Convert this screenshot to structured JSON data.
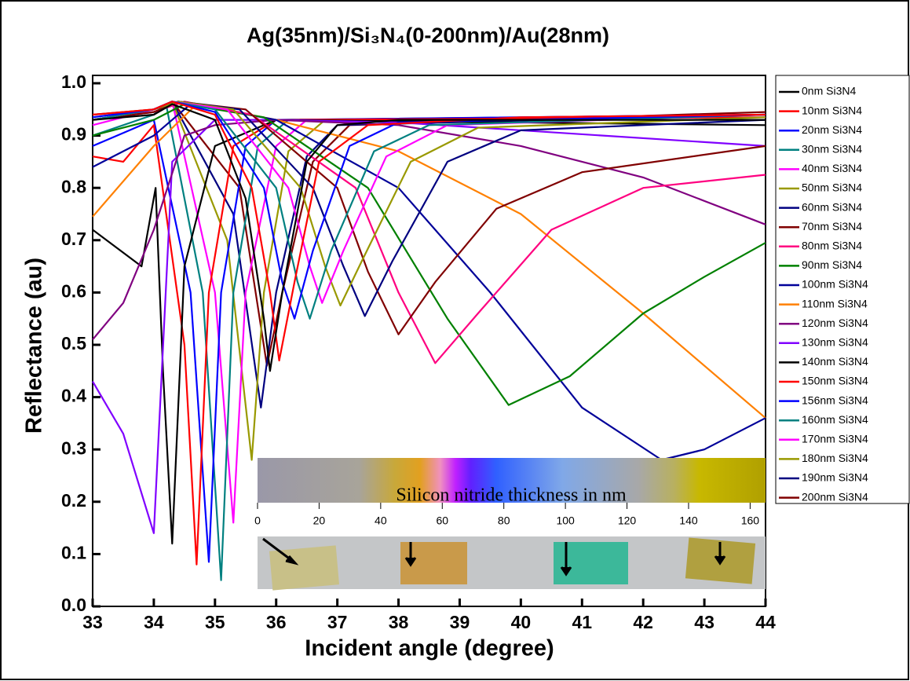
{
  "chart_data": {
    "type": "line",
    "title": "Ag(35nm)/Si₃N₄(0-200nm)/Au(28nm)",
    "x_label": "Incident angle (degree)",
    "y_label": "Reflectance (au)",
    "xlim": [
      33,
      44
    ],
    "ylim": [
      0,
      1.015
    ],
    "xticks": [
      33,
      34,
      35,
      36,
      37,
      38,
      39,
      40,
      41,
      42,
      43,
      44
    ],
    "yticks": [
      {
        "value": 0,
        "label": "0.0"
      },
      0.1,
      0.2,
      0.3,
      0.4,
      0.5,
      0.6,
      0.7,
      0.8,
      0.9,
      {
        "value": 1,
        "label": "1.0"
      }
    ],
    "series": [
      {
        "name": "0nm Si3N4",
        "color": "#000000",
        "x": [
          33,
          34,
          34.3,
          35,
          35.5,
          35.8,
          35.9,
          36.1,
          36.5,
          37,
          38,
          40,
          44
        ],
        "values": [
          0.93,
          0.94,
          0.96,
          0.93,
          0.78,
          0.55,
          0.45,
          0.6,
          0.85,
          0.92,
          0.93,
          0.93,
          0.93
        ]
      },
      {
        "name": "10nm Si3N4",
        "color": "#ff0000",
        "x": [
          33,
          34,
          34.3,
          35,
          35.6,
          35.9,
          36.05,
          36.3,
          36.7,
          37.5,
          40,
          44
        ],
        "values": [
          0.94,
          0.95,
          0.965,
          0.94,
          0.8,
          0.6,
          0.47,
          0.62,
          0.85,
          0.92,
          0.935,
          0.94
        ]
      },
      {
        "name": "20nm Si3N4",
        "color": "#0000ff",
        "x": [
          33,
          34,
          34.3,
          35,
          35.8,
          36.1,
          36.3,
          36.6,
          37.2,
          38,
          44
        ],
        "values": [
          0.935,
          0.95,
          0.965,
          0.945,
          0.8,
          0.62,
          0.55,
          0.68,
          0.88,
          0.925,
          0.94
        ]
      },
      {
        "name": "30nm Si3N4",
        "color": "#008080",
        "x": [
          33,
          34,
          34.3,
          35,
          36,
          36.35,
          36.55,
          36.9,
          37.6,
          38.5,
          44
        ],
        "values": [
          0.93,
          0.95,
          0.965,
          0.95,
          0.8,
          0.62,
          0.55,
          0.68,
          0.87,
          0.92,
          0.94
        ]
      },
      {
        "name": "40nm Si3N4",
        "color": "#ff00ff",
        "x": [
          33,
          34,
          34.3,
          35.2,
          36.2,
          36.55,
          36.75,
          37.1,
          37.8,
          38.8,
          44
        ],
        "values": [
          0.93,
          0.95,
          0.965,
          0.95,
          0.8,
          0.65,
          0.58,
          0.68,
          0.86,
          0.92,
          0.94
        ]
      },
      {
        "name": "50nm Si3N4",
        "color": "#999900",
        "x": [
          33,
          34,
          34.4,
          35.3,
          36.4,
          36.8,
          37.05,
          37.4,
          38.2,
          39.3,
          44
        ],
        "values": [
          0.93,
          0.95,
          0.965,
          0.95,
          0.8,
          0.65,
          0.575,
          0.66,
          0.85,
          0.915,
          0.935
        ]
      },
      {
        "name": "60nm Si3N4",
        "color": "#000080",
        "x": [
          33,
          34,
          34.4,
          35.4,
          36.6,
          37.1,
          37.45,
          37.9,
          38.8,
          40,
          44
        ],
        "values": [
          0.93,
          0.95,
          0.965,
          0.95,
          0.8,
          0.65,
          0.555,
          0.66,
          0.85,
          0.91,
          0.93
        ]
      },
      {
        "name": "70nm Si3N4",
        "color": "#800000",
        "x": [
          33,
          34,
          34.4,
          35.5,
          37,
          37.5,
          38,
          38.6,
          39.6,
          41,
          44
        ],
        "values": [
          0.93,
          0.945,
          0.965,
          0.95,
          0.8,
          0.64,
          0.52,
          0.62,
          0.76,
          0.83,
          0.88
        ]
      },
      {
        "name": "80nm Si3N4",
        "color": "#ff0080",
        "x": [
          33,
          34,
          34.5,
          35.6,
          37.3,
          38,
          38.6,
          39.3,
          40.5,
          42,
          44
        ],
        "values": [
          0.93,
          0.945,
          0.965,
          0.94,
          0.8,
          0.6,
          0.465,
          0.56,
          0.72,
          0.8,
          0.825
        ]
      },
      {
        "name": "90nm Si3N4",
        "color": "#008000",
        "x": [
          33,
          34,
          34.5,
          35.8,
          37.5,
          38.8,
          39.8,
          40.8,
          42,
          43,
          44
        ],
        "values": [
          0.9,
          0.93,
          0.96,
          0.935,
          0.8,
          0.55,
          0.385,
          0.44,
          0.56,
          0.63,
          0.695
        ]
      },
      {
        "name": "100nm Si3N4",
        "color": "#000099",
        "x": [
          33,
          34,
          34.6,
          36,
          38,
          39.5,
          41,
          42.3,
          43,
          44
        ],
        "values": [
          0.84,
          0.9,
          0.96,
          0.93,
          0.8,
          0.6,
          0.38,
          0.28,
          0.3,
          0.36
        ]
      },
      {
        "name": "110nm Si3N4",
        "color": "#ff8000",
        "x": [
          33,
          34,
          34.7,
          36,
          38,
          40,
          42,
          44
        ],
        "values": [
          0.745,
          0.88,
          0.96,
          0.93,
          0.87,
          0.75,
          0.56,
          0.36
        ]
      },
      {
        "name": "120nm Si3N4",
        "color": "#800080",
        "x": [
          33,
          33.5,
          34,
          34.5,
          35,
          36,
          38,
          40,
          42,
          44
        ],
        "values": [
          0.51,
          0.58,
          0.72,
          0.9,
          0.92,
          0.93,
          0.92,
          0.88,
          0.82,
          0.73
        ]
      },
      {
        "name": "130nm Si3N4",
        "color": "#8000ff",
        "x": [
          33,
          33.5,
          34,
          34.3,
          35,
          36,
          38,
          44
        ],
        "values": [
          0.43,
          0.33,
          0.14,
          0.85,
          0.93,
          0.93,
          0.925,
          0.88
        ]
      },
      {
        "name": "140nm Si3N4",
        "color": "#000000",
        "x": [
          33,
          33.8,
          34.03,
          34.15,
          34.3,
          34.5,
          35,
          36,
          44
        ],
        "values": [
          0.72,
          0.65,
          0.8,
          0.45,
          0.12,
          0.65,
          0.88,
          0.93,
          0.92
        ]
      },
      {
        "name": "150nm Si3N4",
        "color": "#ff0000",
        "x": [
          33,
          33.5,
          34,
          34.5,
          34.7,
          34.9,
          35.3,
          36,
          44
        ],
        "values": [
          0.86,
          0.85,
          0.92,
          0.5,
          0.08,
          0.6,
          0.88,
          0.93,
          0.935
        ]
      },
      {
        "name": "156nm Si3N4",
        "color": "#0000ff",
        "x": [
          33,
          34,
          34.6,
          34.9,
          35.1,
          35.5,
          36,
          44
        ],
        "values": [
          0.88,
          0.93,
          0.6,
          0.085,
          0.6,
          0.88,
          0.93,
          0.94
        ]
      },
      {
        "name": "160nm Si3N4",
        "color": "#008080",
        "x": [
          33,
          34,
          34.2,
          34.8,
          35.1,
          35.3,
          35.7,
          36.2,
          44
        ],
        "values": [
          0.9,
          0.94,
          0.96,
          0.6,
          0.05,
          0.6,
          0.88,
          0.93,
          0.94
        ]
      },
      {
        "name": "170nm Si3N4",
        "color": "#ff00ff",
        "x": [
          33,
          34,
          34.3,
          35,
          35.3,
          35.5,
          36,
          36.5,
          44
        ],
        "values": [
          0.92,
          0.95,
          0.965,
          0.6,
          0.16,
          0.6,
          0.88,
          0.93,
          0.94
        ]
      },
      {
        "name": "180nm Si3N4",
        "color": "#999900",
        "x": [
          33,
          34,
          34.3,
          35.2,
          35.6,
          35.8,
          36.2,
          36.8,
          44
        ],
        "values": [
          0.93,
          0.95,
          0.965,
          0.7,
          0.28,
          0.6,
          0.87,
          0.93,
          0.94
        ]
      },
      {
        "name": "190nm Si3N4",
        "color": "#000080",
        "x": [
          33,
          34,
          34.3,
          35.3,
          35.75,
          36,
          36.5,
          37,
          44
        ],
        "values": [
          0.93,
          0.95,
          0.965,
          0.75,
          0.38,
          0.6,
          0.86,
          0.92,
          0.94
        ]
      },
      {
        "name": "200nm Si3N4",
        "color": "#800000",
        "x": [
          33,
          34,
          34.3,
          35.4,
          35.85,
          36.1,
          36.6,
          37.2,
          44
        ],
        "values": [
          0.94,
          0.95,
          0.965,
          0.8,
          0.46,
          0.6,
          0.85,
          0.92,
          0.945
        ]
      }
    ],
    "inset": {
      "label": "Silicon nitride thickness in nm",
      "xlim": [
        0,
        165
      ],
      "xticks": [
        0,
        20,
        40,
        60,
        80,
        100,
        120,
        140,
        160
      ]
    }
  }
}
